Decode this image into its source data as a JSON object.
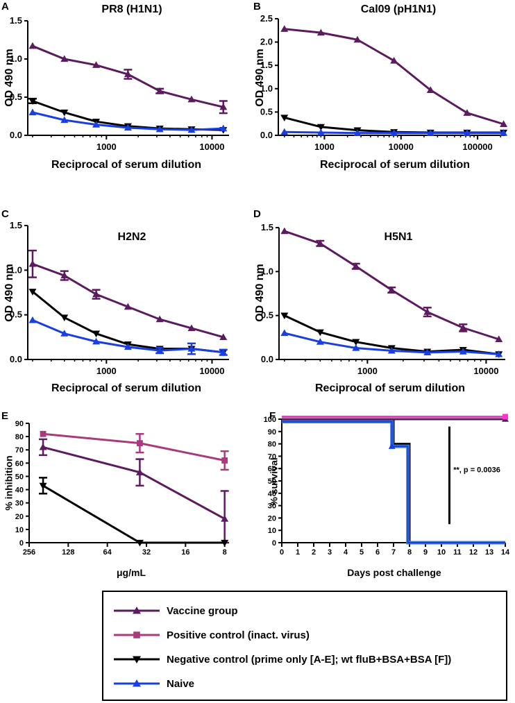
{
  "colors": {
    "vaccine": "#5b1b5e",
    "positive": "#a93a7d",
    "negative": "#000000",
    "naive": "#1a3fe0",
    "survival_positive": "#ff33cc",
    "survival_naive_outline": "#3a7bd5"
  },
  "chart_data": [
    {
      "panel": "A",
      "type": "line",
      "title": "PR8 (H1N1)",
      "xlabel": "Reciprocal of serum dilution",
      "ylabel": "OD 490 nm",
      "xscale": "log",
      "xlim": [
        180,
        14500
      ],
      "ylim": [
        0,
        1.5
      ],
      "xticks": [
        1000,
        10000
      ],
      "xtick_labels": [
        "1000",
        "10000"
      ],
      "yticks": [
        0,
        0.5,
        1.0,
        1.5
      ],
      "ytick_labels": [
        "0.0",
        "0.5",
        "1.0",
        "1.5"
      ],
      "x": [
        200,
        400,
        800,
        1600,
        3200,
        6400,
        12800
      ],
      "series": [
        {
          "key": "vaccine",
          "marker": "triangle-up",
          "values": [
            1.17,
            1.0,
            0.92,
            0.8,
            0.58,
            0.47,
            0.37
          ],
          "errors": [
            0,
            0,
            0,
            0.06,
            0.03,
            0,
            0.08
          ]
        },
        {
          "key": "negative",
          "marker": "triangle-down",
          "values": [
            0.45,
            0.3,
            0.18,
            0.12,
            0.09,
            0.08,
            0.07
          ],
          "errors": [
            0.03,
            0,
            0,
            0,
            0,
            0,
            0
          ]
        },
        {
          "key": "naive",
          "marker": "triangle-up",
          "values": [
            0.3,
            0.2,
            0.14,
            0.1,
            0.08,
            0.07,
            0.09
          ],
          "errors": [
            0,
            0,
            0,
            0,
            0,
            0,
            0
          ]
        }
      ]
    },
    {
      "panel": "B",
      "type": "line",
      "title": "Cal09 (pH1N1)",
      "xlabel": "Reciprocal of serum dilution",
      "ylabel": "OD 490 nm",
      "xscale": "log",
      "xlim": [
        250,
        230000
      ],
      "ylim": [
        0,
        2.5
      ],
      "xticks": [
        1000,
        10000,
        100000
      ],
      "xtick_labels": [
        "1000",
        "10000",
        "100000"
      ],
      "yticks": [
        0,
        0.5,
        1.0,
        1.5,
        2.0,
        2.5
      ],
      "ytick_labels": [
        "0.0",
        "0.5",
        "1.0",
        "1.5",
        "2.0",
        "2.5"
      ],
      "x": [
        300,
        900,
        2700,
        8100,
        24300,
        72900,
        218700
      ],
      "series": [
        {
          "key": "vaccine",
          "marker": "triangle-up",
          "values": [
            2.28,
            2.2,
            2.05,
            1.6,
            0.97,
            0.48,
            0.24
          ],
          "errors": [
            0,
            0,
            0,
            0,
            0,
            0,
            0
          ]
        },
        {
          "key": "negative",
          "marker": "triangle-down",
          "values": [
            0.38,
            0.18,
            0.11,
            0.07,
            0.06,
            0.06,
            0.06
          ],
          "errors": [
            0,
            0,
            0,
            0,
            0,
            0,
            0
          ]
        },
        {
          "key": "naive",
          "marker": "triangle-up",
          "values": [
            0.07,
            0.06,
            0.05,
            0.05,
            0.05,
            0.05,
            0.05
          ],
          "errors": [
            0,
            0,
            0,
            0,
            0,
            0,
            0
          ]
        }
      ]
    },
    {
      "panel": "C",
      "type": "line",
      "title": "H2N2",
      "xlabel": "Reciprocal of serum dilution",
      "ylabel": "OD 490 nm",
      "xscale": "log",
      "xlim": [
        180,
        14500
      ],
      "ylim": [
        0,
        1.5
      ],
      "xticks": [
        1000,
        10000
      ],
      "xtick_labels": [
        "1000",
        "10000"
      ],
      "yticks": [
        0,
        0.5,
        1.0,
        1.5
      ],
      "ytick_labels": [
        "0.0",
        "0.5",
        "1.0",
        "1.5"
      ],
      "x": [
        200,
        400,
        800,
        1600,
        3200,
        6400,
        12800
      ],
      "series": [
        {
          "key": "vaccine",
          "marker": "triangle-up",
          "values": [
            1.07,
            0.94,
            0.73,
            0.59,
            0.45,
            0.35,
            0.25
          ],
          "errors": [
            0.15,
            0.05,
            0.05,
            0,
            0,
            0,
            0
          ]
        },
        {
          "key": "negative",
          "marker": "triangle-down",
          "values": [
            0.76,
            0.47,
            0.29,
            0.17,
            0.12,
            0.12,
            0.08
          ],
          "errors": [
            0,
            0,
            0,
            0,
            0,
            0,
            0
          ]
        },
        {
          "key": "naive",
          "marker": "triangle-up",
          "values": [
            0.44,
            0.29,
            0.2,
            0.14,
            0.1,
            0.12,
            0.08
          ],
          "errors": [
            0,
            0,
            0,
            0,
            0.03,
            0.06,
            0.03
          ]
        }
      ]
    },
    {
      "panel": "D",
      "type": "line",
      "title": "H5N1",
      "xlabel": "Reciprocal of serum dilution",
      "ylabel": "OD 490 nm",
      "xscale": "log",
      "xlim": [
        180,
        14500
      ],
      "ylim": [
        0,
        1.5
      ],
      "xticks": [
        1000,
        10000
      ],
      "xtick_labels": [
        "1000",
        "10000"
      ],
      "yticks": [
        0,
        0.5,
        1.0,
        1.5
      ],
      "ytick_labels": [
        "0.0",
        "0.5",
        "1.0",
        "1.5"
      ],
      "x": [
        200,
        400,
        800,
        1600,
        3200,
        6400,
        12800
      ],
      "series": [
        {
          "key": "vaccine",
          "marker": "triangle-up",
          "values": [
            1.46,
            1.32,
            1.06,
            0.79,
            0.54,
            0.36,
            0.23
          ],
          "errors": [
            0,
            0.03,
            0.03,
            0.03,
            0.05,
            0.04,
            0
          ]
        },
        {
          "key": "negative",
          "marker": "triangle-down",
          "values": [
            0.5,
            0.31,
            0.2,
            0.13,
            0.09,
            0.11,
            0.06
          ],
          "errors": [
            0,
            0,
            0,
            0,
            0,
            0,
            0
          ]
        },
        {
          "key": "naive",
          "marker": "triangle-up",
          "values": [
            0.3,
            0.2,
            0.13,
            0.1,
            0.08,
            0.09,
            0.06
          ],
          "errors": [
            0,
            0,
            0,
            0,
            0,
            0,
            0
          ]
        }
      ]
    },
    {
      "panel": "E",
      "type": "line",
      "title": "",
      "xlabel": "μg/mL",
      "ylabel": "% inhibition",
      "xscale": "log2-reversed",
      "xlim": [
        256,
        7.4
      ],
      "ylim": [
        0,
        90
      ],
      "xticks": [
        256,
        128,
        64,
        32,
        16,
        8
      ],
      "xtick_labels": [
        "256",
        "128",
        "64",
        "32",
        "16",
        "8"
      ],
      "yticks": [
        0,
        10,
        20,
        30,
        40,
        50,
        60,
        70,
        80,
        90
      ],
      "ytick_labels": [
        "0",
        "10",
        "20",
        "30",
        "40",
        "50",
        "60",
        "70",
        "80",
        "90"
      ],
      "x": [
        200,
        36,
        8
      ],
      "series": [
        {
          "key": "positive",
          "marker": "square",
          "values": [
            82,
            75,
            62
          ],
          "errors": [
            0,
            7,
            7
          ]
        },
        {
          "key": "vaccine",
          "marker": "triangle-up",
          "values": [
            72,
            53,
            18
          ],
          "errors": [
            6,
            10,
            21
          ]
        },
        {
          "key": "negative",
          "marker": "triangle-down",
          "values": [
            43,
            0,
            0
          ],
          "errors": [
            6,
            0,
            0
          ]
        }
      ]
    },
    {
      "panel": "F",
      "type": "line",
      "title": "",
      "xlabel": "Days post challenge",
      "ylabel": "% survival",
      "xlim": [
        0,
        14
      ],
      "ylim": [
        0,
        100
      ],
      "xticks": [
        0,
        1,
        2,
        3,
        4,
        5,
        6,
        7,
        8,
        9,
        10,
        11,
        12,
        13,
        14
      ],
      "xtick_labels": [
        "0",
        "1",
        "2",
        "3",
        "4",
        "5",
        "6",
        "7",
        "8",
        "9",
        "10",
        "11",
        "12",
        "13",
        "14"
      ],
      "yticks": [
        0,
        10,
        20,
        30,
        40,
        50,
        60,
        70,
        80,
        90,
        100
      ],
      "ytick_labels": [
        "0",
        "10",
        "20",
        "30",
        "40",
        "50",
        "60",
        "70",
        "80",
        "90",
        "100"
      ],
      "annotation": "**, p = 0.0036",
      "series": [
        {
          "key": "positive",
          "steps": [
            [
              0,
              102
            ],
            [
              14,
              102
            ]
          ],
          "end_marker": "square"
        },
        {
          "key": "vaccine",
          "steps": [
            [
              0,
              100
            ],
            [
              14,
              100
            ]
          ],
          "end_marker": "triangle-up"
        },
        {
          "key": "negative",
          "steps": [
            [
              0,
              100
            ],
            [
              7,
              100
            ],
            [
              7,
              80
            ],
            [
              8,
              80
            ],
            [
              8,
              0
            ],
            [
              14,
              0
            ]
          ]
        },
        {
          "key": "naive",
          "steps": [
            [
              0,
              98
            ],
            [
              6.9,
              98
            ],
            [
              6.9,
              78
            ],
            [
              7.9,
              78
            ],
            [
              7.9,
              0
            ],
            [
              14,
              0
            ]
          ],
          "marker_at": [
            6.9,
            78
          ]
        }
      ]
    }
  ],
  "legend": {
    "items": [
      {
        "key": "vaccine",
        "marker": "triangle-up",
        "label": "Vaccine group"
      },
      {
        "key": "positive",
        "marker": "square",
        "label": "Positive control (inact. virus)"
      },
      {
        "key": "negative",
        "marker": "triangle-down",
        "label": "Negative control (prime only [A-E]; wt fluB+BSA+BSA [F])"
      },
      {
        "key": "naive",
        "marker": "triangle-up",
        "label": "Naive"
      }
    ]
  }
}
